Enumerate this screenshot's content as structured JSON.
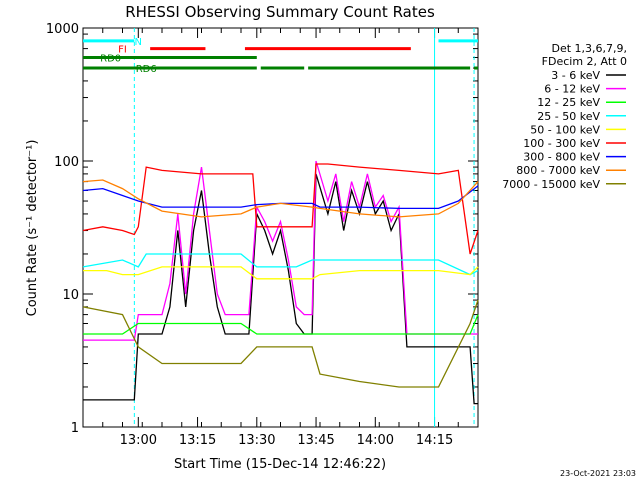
{
  "chart_data": {
    "type": "line",
    "title": "RHESSI Observing Summary Count Rates",
    "xlabel": "Start Time (15-Dec-14 12:46:22)",
    "ylabel": "Count Rate (s⁻¹ detector⁻¹)",
    "yscale": "log",
    "ylim": [
      1,
      1000
    ],
    "xlim_minutes_after_1246": [
      0,
      100
    ],
    "xticks": [
      {
        "label": "13:00",
        "min": 14
      },
      {
        "label": "13:15",
        "min": 29
      },
      {
        "label": "13:30",
        "min": 44
      },
      {
        "label": "13:45",
        "min": 59
      },
      {
        "label": "14:00",
        "min": 74
      },
      {
        "label": "14:15",
        "min": 89
      }
    ],
    "yticks": [
      {
        "label": "1",
        "value": 1
      },
      {
        "label": "10",
        "value": 10
      },
      {
        "label": "100",
        "value": 100
      },
      {
        "label": "1000",
        "value": 1000
      }
    ],
    "legend_header": [
      "Det 1,3,6,7,9,",
      "FDecim 2, Att 0"
    ],
    "legend_position": "right",
    "series": [
      {
        "name": "3 - 6 keV",
        "color": "#000000",
        "points": [
          [
            0,
            1.6
          ],
          [
            13,
            1.6
          ],
          [
            14,
            5
          ],
          [
            20,
            5
          ],
          [
            22,
            8
          ],
          [
            24,
            30
          ],
          [
            26,
            8
          ],
          [
            28,
            30
          ],
          [
            30,
            60
          ],
          [
            32,
            20
          ],
          [
            34,
            8
          ],
          [
            36,
            5
          ],
          [
            38,
            5
          ],
          [
            40,
            5
          ],
          [
            42,
            5
          ],
          [
            44,
            40
          ],
          [
            46,
            30
          ],
          [
            48,
            20
          ],
          [
            50,
            30
          ],
          [
            52,
            15
          ],
          [
            54,
            6
          ],
          [
            56,
            5
          ],
          [
            58,
            5
          ],
          [
            59,
            80
          ],
          [
            62,
            40
          ],
          [
            64,
            70
          ],
          [
            66,
            30
          ],
          [
            68,
            60
          ],
          [
            70,
            40
          ],
          [
            72,
            70
          ],
          [
            74,
            40
          ],
          [
            76,
            50
          ],
          [
            78,
            30
          ],
          [
            80,
            40
          ],
          [
            82,
            4
          ],
          [
            86,
            4
          ],
          [
            90,
            4
          ],
          [
            98,
            4
          ],
          [
            99,
            1.5
          ],
          [
            100,
            1.5
          ]
        ]
      },
      {
        "name": "6 - 12 keV",
        "color": "#ff00ff",
        "points": [
          [
            0,
            4.5
          ],
          [
            13,
            4.5
          ],
          [
            14,
            7
          ],
          [
            20,
            7
          ],
          [
            22,
            12
          ],
          [
            24,
            40
          ],
          [
            26,
            10
          ],
          [
            28,
            40
          ],
          [
            30,
            90
          ],
          [
            32,
            30
          ],
          [
            34,
            10
          ],
          [
            36,
            7
          ],
          [
            40,
            7
          ],
          [
            42,
            7
          ],
          [
            44,
            45
          ],
          [
            46,
            35
          ],
          [
            48,
            25
          ],
          [
            50,
            35
          ],
          [
            52,
            18
          ],
          [
            54,
            8
          ],
          [
            56,
            7
          ],
          [
            58,
            7
          ],
          [
            59,
            100
          ],
          [
            62,
            50
          ],
          [
            64,
            80
          ],
          [
            66,
            35
          ],
          [
            68,
            70
          ],
          [
            70,
            45
          ],
          [
            72,
            80
          ],
          [
            74,
            45
          ],
          [
            76,
            55
          ],
          [
            78,
            35
          ],
          [
            80,
            45
          ],
          [
            82,
            5
          ],
          [
            90,
            5
          ],
          [
            98,
            5
          ],
          [
            100,
            5
          ]
        ]
      },
      {
        "name": "12 - 25 keV",
        "color": "#00ff00",
        "points": [
          [
            0,
            5
          ],
          [
            10,
            5
          ],
          [
            14,
            6
          ],
          [
            20,
            6
          ],
          [
            30,
            6
          ],
          [
            40,
            6
          ],
          [
            44,
            5
          ],
          [
            50,
            5
          ],
          [
            58,
            5
          ],
          [
            60,
            5
          ],
          [
            70,
            5
          ],
          [
            80,
            5
          ],
          [
            90,
            5
          ],
          [
            98,
            5
          ],
          [
            100,
            7
          ]
        ]
      },
      {
        "name": "25 - 50 keV",
        "color": "#00ffff",
        "points": [
          [
            0,
            16
          ],
          [
            10,
            18
          ],
          [
            14,
            16
          ],
          [
            16,
            20
          ],
          [
            20,
            20
          ],
          [
            30,
            20
          ],
          [
            40,
            20
          ],
          [
            44,
            16
          ],
          [
            50,
            16
          ],
          [
            54,
            16
          ],
          [
            58,
            18
          ],
          [
            60,
            18
          ],
          [
            70,
            18
          ],
          [
            80,
            18
          ],
          [
            90,
            18
          ],
          [
            98,
            14
          ],
          [
            100,
            15
          ]
        ]
      },
      {
        "name": "50 - 100 keV",
        "color": "#ffff00",
        "points": [
          [
            0,
            15
          ],
          [
            6,
            15
          ],
          [
            10,
            14
          ],
          [
            14,
            14
          ],
          [
            20,
            16
          ],
          [
            30,
            16
          ],
          [
            40,
            16
          ],
          [
            44,
            13
          ],
          [
            50,
            13
          ],
          [
            58,
            13
          ],
          [
            60,
            14
          ],
          [
            70,
            15
          ],
          [
            80,
            15
          ],
          [
            90,
            15
          ],
          [
            98,
            14
          ],
          [
            100,
            16
          ]
        ]
      },
      {
        "name": "100 - 300 keV",
        "color": "#ff0000",
        "points": [
          [
            0,
            30
          ],
          [
            5,
            32
          ],
          [
            10,
            30
          ],
          [
            13,
            28
          ],
          [
            14,
            32
          ],
          [
            16,
            90
          ],
          [
            20,
            85
          ],
          [
            30,
            80
          ],
          [
            40,
            80
          ],
          [
            43,
            80
          ],
          [
            44,
            32
          ],
          [
            46,
            32
          ],
          [
            50,
            32
          ],
          [
            58,
            32
          ],
          [
            59,
            95
          ],
          [
            62,
            95
          ],
          [
            70,
            90
          ],
          [
            80,
            85
          ],
          [
            90,
            80
          ],
          [
            95,
            85
          ],
          [
            98,
            20
          ],
          [
            100,
            30
          ]
        ]
      },
      {
        "name": "300 - 800 keV",
        "color": "#0000ff",
        "points": [
          [
            0,
            60
          ],
          [
            5,
            62
          ],
          [
            10,
            55
          ],
          [
            14,
            50
          ],
          [
            20,
            45
          ],
          [
            30,
            45
          ],
          [
            40,
            45
          ],
          [
            44,
            47
          ],
          [
            50,
            48
          ],
          [
            58,
            48
          ],
          [
            60,
            45
          ],
          [
            70,
            45
          ],
          [
            80,
            44
          ],
          [
            90,
            44
          ],
          [
            95,
            50
          ],
          [
            100,
            65
          ]
        ]
      },
      {
        "name": "800 - 7000 keV",
        "color": "#ff8000",
        "points": [
          [
            0,
            70
          ],
          [
            5,
            72
          ],
          [
            10,
            62
          ],
          [
            14,
            52
          ],
          [
            20,
            42
          ],
          [
            30,
            38
          ],
          [
            40,
            40
          ],
          [
            44,
            45
          ],
          [
            50,
            48
          ],
          [
            58,
            45
          ],
          [
            60,
            44
          ],
          [
            70,
            40
          ],
          [
            80,
            38
          ],
          [
            90,
            40
          ],
          [
            95,
            48
          ],
          [
            100,
            70
          ]
        ]
      },
      {
        "name": "7000 - 15000 keV",
        "color": "#808000",
        "points": [
          [
            0,
            8
          ],
          [
            10,
            7
          ],
          [
            14,
            4
          ],
          [
            20,
            3
          ],
          [
            30,
            3
          ],
          [
            40,
            3
          ],
          [
            44,
            4
          ],
          [
            50,
            4
          ],
          [
            58,
            4
          ],
          [
            60,
            2.5
          ],
          [
            70,
            2.2
          ],
          [
            80,
            2
          ],
          [
            90,
            2
          ],
          [
            98,
            6
          ],
          [
            100,
            9
          ]
        ]
      }
    ],
    "flags": [
      {
        "label": "N",
        "color": "#00ffff",
        "value": 800,
        "label_at_min": 14,
        "segments": [
          [
            0,
            13
          ],
          [
            90,
            100
          ]
        ]
      },
      {
        "label": "FI",
        "color": "#ff0000",
        "value": 700,
        "label_at_min": 10,
        "segments": [
          [
            17,
            31
          ],
          [
            41,
            83
          ]
        ]
      },
      {
        "label": "RD0",
        "color": "#008000",
        "value": 600,
        "label_at_min": 7,
        "segments": [
          [
            0,
            44
          ]
        ]
      },
      {
        "label": "RD6",
        "color": "#008000",
        "value": 500,
        "label_at_min": 16,
        "segments": [
          [
            0,
            44
          ],
          [
            45,
            56
          ],
          [
            57,
            98
          ],
          [
            99,
            100
          ]
        ]
      }
    ],
    "vlines": [
      {
        "min": 13,
        "color": "#00ffff",
        "style": "dashed"
      },
      {
        "min": 89,
        "color": "#00ffff",
        "style": "solid"
      },
      {
        "min": 99,
        "color": "#00ffff",
        "style": "dashed"
      }
    ],
    "timestamp": "23-Oct-2021 23:03"
  }
}
